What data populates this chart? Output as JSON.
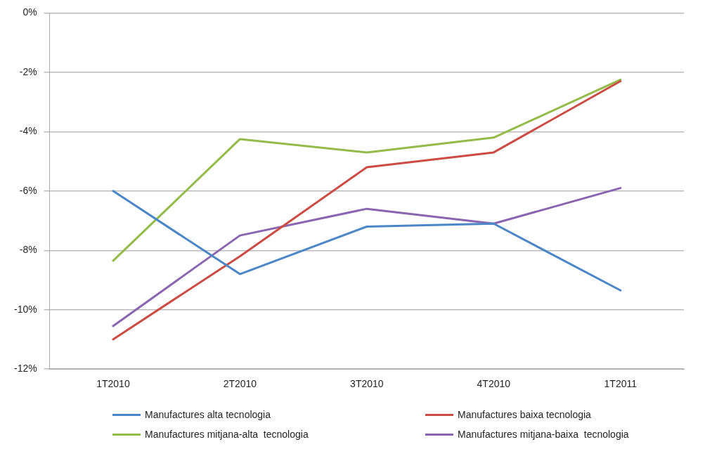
{
  "chart_data": {
    "type": "line",
    "categories": [
      "1T2010",
      "2T2010",
      "3T2010",
      "4T2010",
      "1T2011"
    ],
    "series": [
      {
        "name": "Manufactures alta tecnologia",
        "color": "#4a86c8",
        "values": [
          -6.0,
          -8.8,
          -7.2,
          -7.1,
          -9.35
        ]
      },
      {
        "name": "Manufactures baixa tecnologia",
        "color": "#cc4b42",
        "values": [
          -11.0,
          -8.2,
          -5.2,
          -4.7,
          -2.3
        ]
      },
      {
        "name": "Manufactures mitjana-alta  tecnologia",
        "color": "#93bb47",
        "values": [
          -8.35,
          -4.25,
          -4.7,
          -4.2,
          -2.25
        ]
      },
      {
        "name": "Manufactures mitjana-baixa  tecnologia",
        "color": "#8a64b0",
        "values": [
          -10.55,
          -7.5,
          -6.6,
          -7.1,
          -5.9
        ]
      }
    ],
    "ylim": [
      -12,
      0
    ],
    "yticks": [
      {
        "value": -12,
        "label": "-12%"
      },
      {
        "value": -10,
        "label": "-10%"
      },
      {
        "value": -8,
        "label": "-8%"
      },
      {
        "value": -6,
        "label": "-6%"
      },
      {
        "value": -4,
        "label": "-4%"
      },
      {
        "value": -2,
        "label": "-2%"
      },
      {
        "value": 0,
        "label": "0%"
      }
    ],
    "grid": "y",
    "legend": "bottom",
    "marker": "none",
    "line_style": "solid"
  }
}
